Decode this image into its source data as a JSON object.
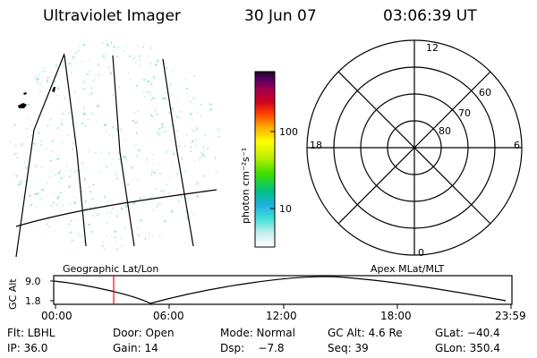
{
  "header": {
    "title": "Ultraviolet Imager",
    "date": "30 Jun 07",
    "time": "03:06:39 UT"
  },
  "colorbar": {
    "label": "photon cm⁻²s⁻¹",
    "ticks": [
      "100",
      "10"
    ]
  },
  "polar": {
    "mlt_labels": [
      "12",
      "18",
      "6",
      "0"
    ],
    "lat_labels": [
      "60",
      "70",
      "80"
    ]
  },
  "panels": {
    "left_caption": "Geographic Lat/Lon",
    "right_caption": "Apex MLat/MLT"
  },
  "altitude_plot": {
    "ylabel": "GC Alt",
    "yticks": [
      "9.0",
      "1.8"
    ],
    "xticks": [
      "00:00",
      "06:00",
      "12:00",
      "18:00",
      "23:59"
    ]
  },
  "info": {
    "row1": [
      "Flt: LBHL",
      "Door: Open",
      "Mode: Normal",
      "GC Alt: 4.6 Re",
      "GLat: −40.4"
    ],
    "row2": [
      "IP: 36.0",
      "Gain: 14",
      "Dsp:    −7.8",
      "Seq: 39",
      "GLon: 350.4"
    ]
  },
  "colors": {
    "marker": "#ff0000",
    "speckle": "#9adede"
  }
}
